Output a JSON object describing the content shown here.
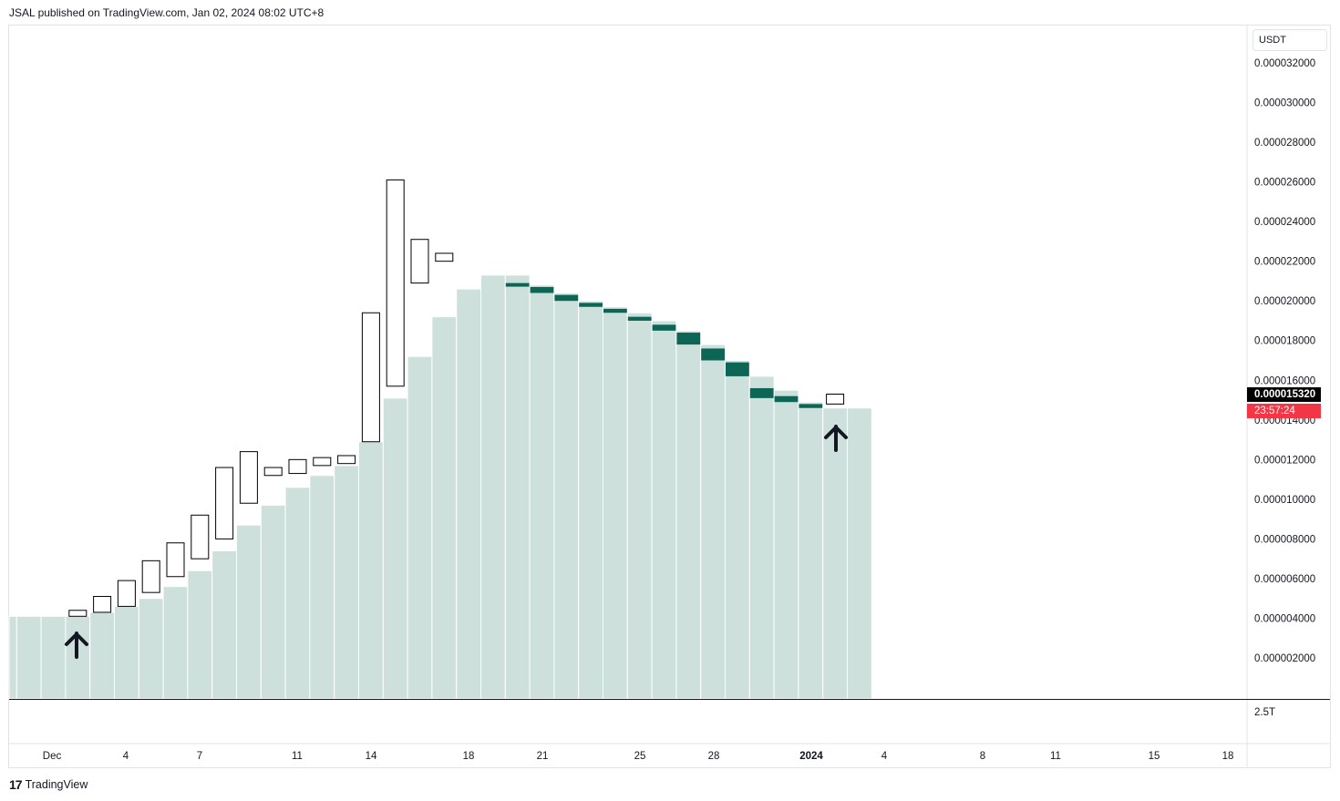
{
  "header": {
    "published": "JSAL published on TradingView.com, Jan 02, 2024 08:02 UTC+8"
  },
  "price_axis": {
    "unit": "USDT",
    "ticks": [
      "0.000032000",
      "0.000030000",
      "0.000028000",
      "0.000026000",
      "0.000024000",
      "0.000022000",
      "0.000020000",
      "0.000018000",
      "0.000016000",
      "0.000014000",
      "0.000012000",
      "0.000010000",
      "0.000008000",
      "0.000006000",
      "0.000004000",
      "0.000002000"
    ],
    "last_price": "0.000015320",
    "countdown": "23:57:24",
    "volume_tick": "2.5T"
  },
  "time_axis": {
    "labels": [
      "Dec",
      "4",
      "7",
      "11",
      "14",
      "18",
      "21",
      "25",
      "28",
      "2024",
      "4",
      "8",
      "11",
      "15",
      "18"
    ]
  },
  "footer": {
    "brand": "TradingView"
  },
  "colors": {
    "area_fill": "#cde0dc",
    "bar_dark": "#0d6655",
    "candle_stroke": "#000000",
    "last_price_bg": "#000000",
    "countdown_bg": "#f23645"
  },
  "icons": {
    "arrow_1": "up-arrow-icon",
    "arrow_2": "up-arrow-icon",
    "logo": "tradingview-logo-icon"
  },
  "chart_data": {
    "type": "bar",
    "description_series": [
      {
        "name": "",
        "kind": "area-step",
        "values": [
          4.1e-06,
          4.1e-06,
          4.1e-06,
          4.1e-06,
          4.3e-06,
          4.6e-06,
          5e-06,
          5.6e-06,
          6.4e-06,
          7.4e-06,
          8.7e-06,
          9.7e-06,
          1.06e-05,
          1.12e-05,
          1.17e-05,
          1.29e-05,
          1.51e-05,
          1.72e-05,
          1.92e-05,
          2.06e-05,
          2.13e-05,
          2.13e-05,
          2.08e-05,
          2.04e-05,
          2e-05,
          1.97e-05,
          1.94e-05,
          1.9e-05,
          1.85e-05,
          1.78e-05,
          1.7e-05,
          1.62e-05,
          1.55e-05,
          1.49e-05,
          1.46e-05,
          1.46e-05
        ]
      },
      {
        "name": "",
        "kind": "dark-bars",
        "ranges": [
          [
            21,
            2.09e-05,
            2.08e-05
          ],
          [
            22,
            2.07e-05,
            2.04e-05
          ],
          [
            23,
            2.03e-05,
            2e-05
          ],
          [
            24,
            1.99e-05,
            1.97e-05
          ],
          [
            25,
            1.96e-05,
            1.94e-05
          ],
          [
            26,
            1.92e-05,
            1.9e-05
          ],
          [
            27,
            1.88e-05,
            1.85e-05
          ],
          [
            28,
            1.84e-05,
            1.78e-05
          ],
          [
            29,
            1.76e-05,
            1.7e-05
          ],
          [
            30,
            1.69e-05,
            1.62e-05
          ],
          [
            31,
            1.56e-05,
            1.51e-05
          ],
          [
            32,
            1.52e-05,
            1.49e-05
          ],
          [
            33,
            1.48e-05,
            1.46e-05
          ]
        ]
      }
    ],
    "candles": [
      {
        "i": 3,
        "open": 4.1e-06,
        "close": 4.4e-06
      },
      {
        "i": 4,
        "open": 4.3e-06,
        "close": 5.1e-06
      },
      {
        "i": 5,
        "open": 4.6e-06,
        "close": 5.9e-06
      },
      {
        "i": 6,
        "open": 5.3e-06,
        "close": 6.9e-06
      },
      {
        "i": 7,
        "open": 6.1e-06,
        "close": 7.8e-06
      },
      {
        "i": 8,
        "open": 7e-06,
        "close": 9.2e-06
      },
      {
        "i": 9,
        "open": 8e-06,
        "close": 1.16e-05
      },
      {
        "i": 10,
        "open": 9.8e-06,
        "close": 1.24e-05
      },
      {
        "i": 11,
        "open": 1.12e-05,
        "close": 1.16e-05
      },
      {
        "i": 12,
        "open": 1.13e-05,
        "close": 1.2e-05
      },
      {
        "i": 13,
        "open": 1.17e-05,
        "close": 1.21e-05
      },
      {
        "i": 14,
        "open": 1.18e-05,
        "close": 1.22e-05
      },
      {
        "i": 15,
        "open": 1.29e-05,
        "close": 1.94e-05
      },
      {
        "i": 16,
        "open": 1.57e-05,
        "close": 2.61e-05
      },
      {
        "i": 17,
        "open": 2.09e-05,
        "close": 2.31e-05
      },
      {
        "i": 18,
        "open": 2.2e-05,
        "close": 2.24e-05
      },
      {
        "i": 34,
        "open": 1.48e-05,
        "close": 1.53e-05
      }
    ],
    "ylim": [
      0,
      3.4e-05
    ],
    "grid": false
  }
}
